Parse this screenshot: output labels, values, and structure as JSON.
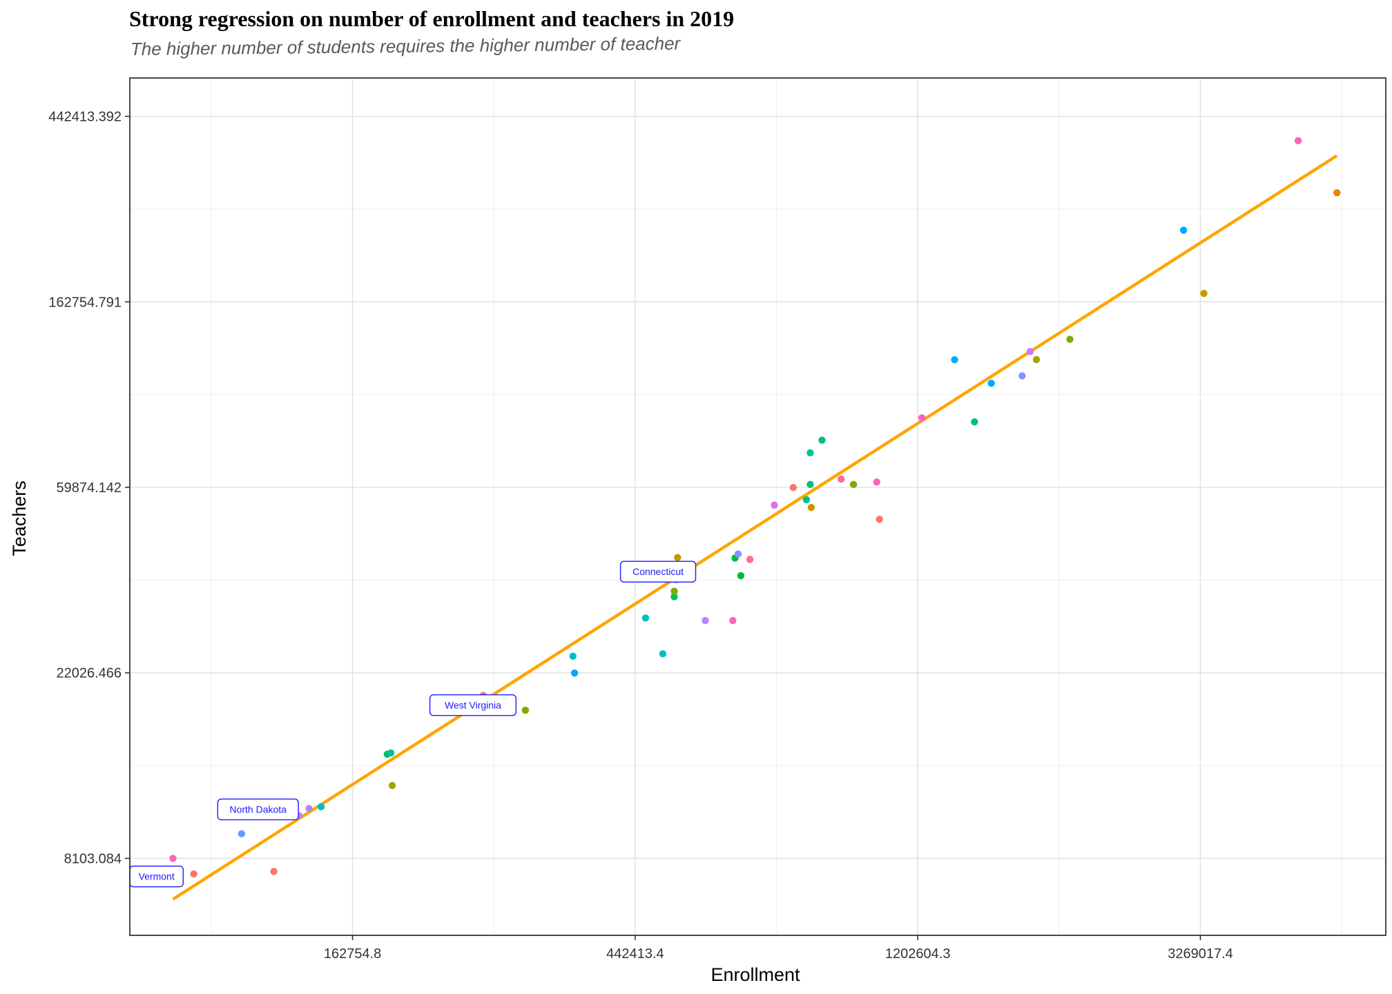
{
  "chart_data": {
    "type": "scatter",
    "title": "Strong regression on number of enrollment and teachers in 2019",
    "subtitle": "The higher number of students requires the higher number of teacher",
    "xlabel": "Enrollment",
    "ylabel": "Teachers",
    "x_scale": "log",
    "y_scale": "log",
    "xlim": [
      74000,
      6300000
    ],
    "ylim": [
      5350,
      544000
    ],
    "x_ticks": [
      162754.8,
      442413.4,
      1202604.3,
      3269017.4
    ],
    "x_tick_labels": [
      "162754.8",
      "442413.4",
      "1202604.3",
      "3269017.4"
    ],
    "y_ticks": [
      8103.084,
      22026.466,
      59874.142,
      162754.791,
      442413.392
    ],
    "y_tick_labels": [
      "8103.084",
      "22026.466",
      "59874.142",
      "162754.791",
      "442413.392"
    ],
    "grid": true,
    "legend": "none",
    "colors": {
      "trend": "#FFA500",
      "label_text": "#1a1aff",
      "panel_border": "#333333"
    },
    "trend_line": {
      "x": [
        86200,
        5300000
      ],
      "y": [
        6500,
        358000
      ]
    },
    "points": [
      {
        "x": 86200,
        "y": 8100,
        "color": "#FF61C3"
      },
      {
        "x": 92800,
        "y": 7450,
        "color": "#F8766D"
      },
      {
        "x": 109900,
        "y": 9250,
        "color": "#619CFF"
      },
      {
        "x": 123200,
        "y": 7550,
        "color": "#F8766D"
      },
      {
        "x": 134600,
        "y": 10200,
        "color": "#C77CFF"
      },
      {
        "x": 139500,
        "y": 10600,
        "color": "#B983FF"
      },
      {
        "x": 145600,
        "y": 10700,
        "color": "#00BFC4"
      },
      {
        "x": 184000,
        "y": 14200,
        "color": "#00BE67"
      },
      {
        "x": 186400,
        "y": 14300,
        "color": "#00C19A"
      },
      {
        "x": 187300,
        "y": 12000,
        "color": "#A3A500"
      },
      {
        "x": 258500,
        "y": 19500,
        "color": "#F8766D"
      },
      {
        "x": 300000,
        "y": 18000,
        "color": "#7CAE00"
      },
      {
        "x": 355000,
        "y": 24100,
        "color": "#00BFC4"
      },
      {
        "x": 357000,
        "y": 22000,
        "color": "#00A9FF"
      },
      {
        "x": 459000,
        "y": 29600,
        "color": "#00BFC4"
      },
      {
        "x": 488000,
        "y": 24400,
        "color": "#00BFC4"
      },
      {
        "x": 508000,
        "y": 33200,
        "color": "#00BE67"
      },
      {
        "x": 508000,
        "y": 34200,
        "color": "#7CAE00"
      },
      {
        "x": 511000,
        "y": 36400,
        "color": "#FF61C3"
      },
      {
        "x": 514000,
        "y": 41000,
        "color": "#C49A00"
      },
      {
        "x": 567000,
        "y": 29200,
        "color": "#B983FF"
      },
      {
        "x": 625000,
        "y": 29200,
        "color": "#FF61C3"
      },
      {
        "x": 630000,
        "y": 40900,
        "color": "#00BA38"
      },
      {
        "x": 637000,
        "y": 41800,
        "color": "#8494FF"
      },
      {
        "x": 643000,
        "y": 37200,
        "color": "#00BA38"
      },
      {
        "x": 664000,
        "y": 40600,
        "color": "#FF6C91"
      },
      {
        "x": 724000,
        "y": 54400,
        "color": "#E76BF3"
      },
      {
        "x": 774000,
        "y": 59800,
        "color": "#F8766D"
      },
      {
        "x": 811000,
        "y": 56000,
        "color": "#00C08B"
      },
      {
        "x": 822000,
        "y": 60800,
        "color": "#00BF7D"
      },
      {
        "x": 822000,
        "y": 72100,
        "color": "#00C19A"
      },
      {
        "x": 825000,
        "y": 53700,
        "color": "#C49A00"
      },
      {
        "x": 857000,
        "y": 77200,
        "color": "#00BF7D"
      },
      {
        "x": 917000,
        "y": 62600,
        "color": "#FF6C91"
      },
      {
        "x": 958000,
        "y": 60800,
        "color": "#7CAE00"
      },
      {
        "x": 1040000,
        "y": 61600,
        "color": "#FF61C3"
      },
      {
        "x": 1050000,
        "y": 50400,
        "color": "#F8766D"
      },
      {
        "x": 1220000,
        "y": 87100,
        "color": "#FF61C3"
      },
      {
        "x": 1370000,
        "y": 119100,
        "color": "#00A9FF"
      },
      {
        "x": 1470000,
        "y": 85200,
        "color": "#00BF7D"
      },
      {
        "x": 1560000,
        "y": 104900,
        "color": "#00A9FF"
      },
      {
        "x": 1740000,
        "y": 109200,
        "color": "#8494FF"
      },
      {
        "x": 1790000,
        "y": 124500,
        "color": "#C77CFF"
      },
      {
        "x": 1830000,
        "y": 119200,
        "color": "#A3A500"
      },
      {
        "x": 2060000,
        "y": 133000,
        "color": "#7CAE00"
      },
      {
        "x": 3080000,
        "y": 239500,
        "color": "#00A9FF"
      },
      {
        "x": 3310000,
        "y": 170300,
        "color": "#C49A00"
      },
      {
        "x": 4620000,
        "y": 388000,
        "color": "#FF61C3"
      },
      {
        "x": 5300000,
        "y": 293000,
        "color": "#E58700"
      }
    ],
    "annotations": [
      {
        "text": "Vermont",
        "x": 74000,
        "y": 7350
      },
      {
        "text": "North Dakota",
        "x": 101000,
        "y": 10550
      },
      {
        "text": "West Virginia",
        "x": 214000,
        "y": 18500
      },
      {
        "text": "Connecticut",
        "x": 420000,
        "y": 38000
      }
    ]
  }
}
